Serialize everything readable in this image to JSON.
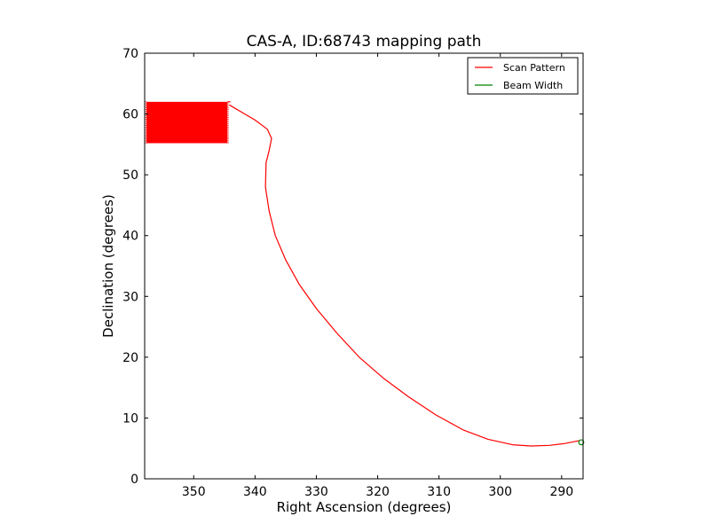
{
  "chart_data": {
    "type": "line",
    "title": "CAS-A, ID:68743 mapping path",
    "xlabel": "Right Ascension (degrees)",
    "ylabel": "Declination (degrees)",
    "xlim": [
      358,
      286.5
    ],
    "ylim": [
      0,
      70
    ],
    "x_axis_reversed": true,
    "xticks": [
      350,
      340,
      330,
      320,
      310,
      300,
      290
    ],
    "yticks": [
      0,
      10,
      20,
      30,
      40,
      50,
      60,
      70
    ],
    "grid": false,
    "legend": {
      "placement": "top-right",
      "fontsize": "small"
    },
    "series": [
      {
        "name": "Scan Pattern",
        "color": "#ff0000",
        "style": "line",
        "x": [
          344.2,
          340.0,
          338.0,
          337.3,
          337.7,
          338.2,
          338.3,
          337.7,
          336.7,
          335.0,
          332.8,
          330.0,
          326.7,
          323.0,
          319.0,
          315.0,
          310.5,
          306.0,
          302.0,
          298.0,
          295.0,
          292.0,
          289.5,
          287.0
        ],
        "y": [
          61.5,
          59.0,
          57.5,
          56.0,
          54.0,
          52.0,
          48.0,
          44.0,
          40.0,
          36.0,
          32.0,
          28.0,
          24.0,
          20.0,
          16.5,
          13.5,
          10.5,
          8.0,
          6.5,
          5.6,
          5.4,
          5.5,
          5.8,
          6.3
        ]
      },
      {
        "name": "Beam Width",
        "color": "#008000",
        "style": "circle",
        "x": [
          286.8
        ],
        "y": [
          6.0
        ]
      }
    ],
    "raster_region": {
      "color": "#ff0000",
      "ra_min": 344.5,
      "ra_max": 357.7,
      "dec_min": 55.2,
      "dec_max": 62.0
    }
  }
}
